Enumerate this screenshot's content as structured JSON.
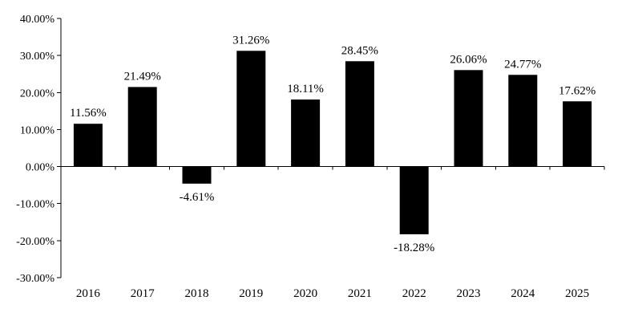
{
  "chart_data": {
    "type": "bar",
    "categories": [
      "2016",
      "2017",
      "2018",
      "2019",
      "2020",
      "2021",
      "2022",
      "2023",
      "2024",
      "2025"
    ],
    "values": [
      11.56,
      21.49,
      -4.61,
      31.26,
      18.11,
      28.45,
      -18.28,
      26.06,
      24.77,
      17.62
    ],
    "data_labels": [
      "11.56%",
      "21.49%",
      "-4.61%",
      "31.26%",
      "18.11%",
      "28.45%",
      "-18.28%",
      "26.06%",
      "24.77%",
      "17.62%"
    ],
    "ylim": [
      -30,
      40
    ],
    "yticks": [
      40,
      30,
      20,
      10,
      0,
      -10,
      -20,
      -30
    ],
    "ytick_labels": [
      "40.00%",
      "30.00%",
      "20.00%",
      "10.00%",
      "0.00%",
      "-10.00%",
      "-20.00%",
      "-30.00%"
    ],
    "title": "",
    "xlabel": "",
    "ylabel": "",
    "grid": false,
    "legend": false,
    "bar_color": "#000000"
  }
}
